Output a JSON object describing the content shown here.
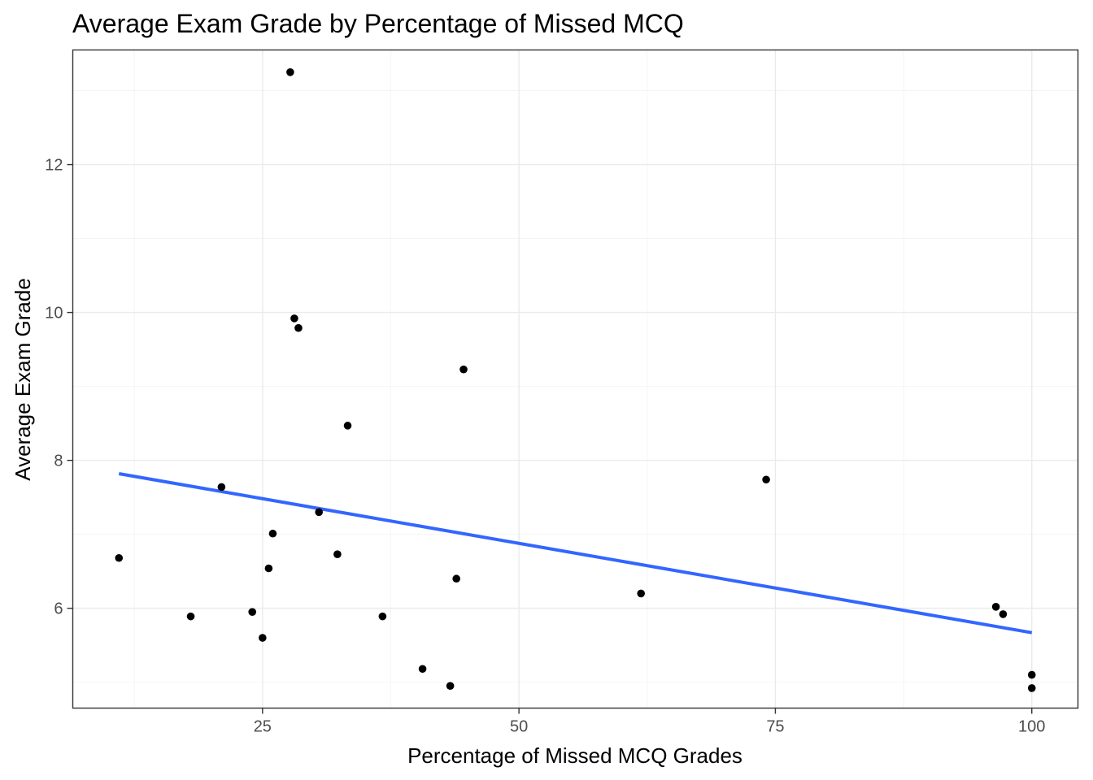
{
  "chart_data": {
    "type": "scatter",
    "title": "Average Exam Grade by Percentage of Missed MCQ",
    "xlabel": "Percentage of Missed MCQ Grades",
    "ylabel": "Average Exam Grade",
    "xlim": [
      6.5,
      104.5
    ],
    "ylim": [
      4.65,
      13.55
    ],
    "xticks": [
      25,
      50,
      75,
      100
    ],
    "yticks": [
      6,
      8,
      10,
      12
    ],
    "grid": true,
    "legend": "none",
    "point_color": "#000000",
    "trend_color": "#3366ff",
    "points": [
      {
        "x": 11.0,
        "y": 6.68
      },
      {
        "x": 18.0,
        "y": 5.89
      },
      {
        "x": 21.0,
        "y": 7.64
      },
      {
        "x": 24.0,
        "y": 5.95
      },
      {
        "x": 25.0,
        "y": 5.6
      },
      {
        "x": 25.6,
        "y": 6.54
      },
      {
        "x": 26.0,
        "y": 7.01
      },
      {
        "x": 27.7,
        "y": 13.25
      },
      {
        "x": 28.1,
        "y": 9.92
      },
      {
        "x": 28.5,
        "y": 9.79
      },
      {
        "x": 30.5,
        "y": 7.3
      },
      {
        "x": 32.3,
        "y": 6.73
      },
      {
        "x": 33.3,
        "y": 8.47
      },
      {
        "x": 36.7,
        "y": 5.89
      },
      {
        "x": 40.6,
        "y": 5.18
      },
      {
        "x": 43.3,
        "y": 4.95
      },
      {
        "x": 43.9,
        "y": 6.4
      },
      {
        "x": 44.6,
        "y": 9.23
      },
      {
        "x": 61.9,
        "y": 6.2
      },
      {
        "x": 74.1,
        "y": 7.74
      },
      {
        "x": 96.5,
        "y": 6.02
      },
      {
        "x": 97.2,
        "y": 5.92
      },
      {
        "x": 100.0,
        "y": 5.1
      },
      {
        "x": 100.0,
        "y": 4.92
      }
    ],
    "trendline": {
      "x": [
        11.0,
        100.0
      ],
      "y": [
        7.82,
        5.67
      ]
    }
  }
}
